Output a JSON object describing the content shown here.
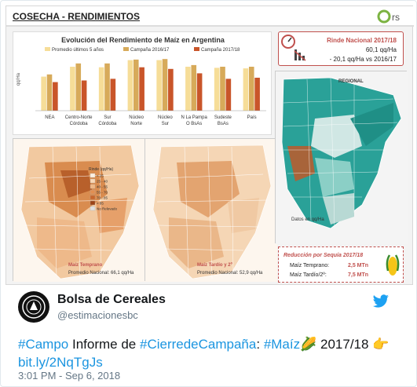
{
  "infographic": {
    "header_title": "COSECHA - RENDIMIENTOS",
    "logo_text": "rs",
    "chart": {
      "title": "Evolución del Rendimiento de Maíz en Argentina",
      "legend": [
        "Promedio últimos 5 años",
        "Campaña 2016/17",
        "Campaña 2017/18"
      ],
      "ylabel": "qq/Ha",
      "colors": [
        "#f6dd98",
        "#d7aa5a",
        "#c9552a"
      ]
    },
    "map_temprano": {
      "label": "Maíz Temprano",
      "avg": "Promedio Nacional: 66,1 qq/Ha"
    },
    "map_tardio": {
      "label": "Maíz Tardío y 2º",
      "avg": "Promedio Nacional: 52,9 qq/Ha"
    },
    "map_legend_title": "Rinde (qq/Ha)",
    "map_legend_items": [
      "< 25",
      "25 - 40",
      "40 - 55",
      "55 - 70",
      "70 - 85",
      "> 85",
      "No Relevado"
    ],
    "rinde": {
      "title": "Rinde Nacional 2017/18",
      "line1": "60,1 qq/Ha",
      "line2": "- 20,1 qq/Ha vs 2016/17"
    },
    "regional": {
      "label": "REGIONAL",
      "source": "Datos en qq/Ha"
    },
    "sequia": {
      "title": "Reducción por Sequía 2017/18",
      "row1_label": "Maíz Temprano:",
      "row1_value": "2,5 MTn",
      "row2_label": "Maíz Tardío/2º:",
      "row2_value": "7,5 MTn"
    }
  },
  "chart_data": {
    "type": "bar",
    "title": "Evolución del Rendimiento de Maíz en Argentina",
    "ylabel": "qq/Ha",
    "ylim": [
      0,
      100
    ],
    "categories": [
      "NEA",
      "Centro-Norte Córdoba",
      "Sur Córdoba",
      "Núcleo Norte",
      "Núcleo Sur",
      "N La Pampa O BsAs",
      "Sudeste BsAs",
      "País"
    ],
    "series": [
      {
        "name": "Promedio últimos 5 años",
        "values": [
          62,
          80,
          79,
          92,
          92,
          80,
          78,
          77
        ]
      },
      {
        "name": "Campaña 2016/17",
        "values": [
          66,
          86,
          86,
          93,
          94,
          83,
          80,
          80
        ]
      },
      {
        "name": "Campaña 2017/18",
        "values": [
          52,
          55,
          58,
          79,
          76,
          68,
          58,
          60
        ]
      }
    ]
  },
  "tweet": {
    "display_name": "Bolsa de Cereales",
    "handle": "@estimacionesbc",
    "text_parts": [
      {
        "text": "#Campo",
        "link": true
      },
      {
        "text": " Informe de ",
        "link": false
      },
      {
        "text": "#CierredeCampaña",
        "link": true
      },
      {
        "text": ": ",
        "link": false
      },
      {
        "text": "#Maíz",
        "link": true
      },
      {
        "text": "🌽 2017/18 👉",
        "link": false
      }
    ],
    "url": "bit.ly/2NqTgJs",
    "timestamp": "3:01 PM - Sep 6, 2018"
  }
}
